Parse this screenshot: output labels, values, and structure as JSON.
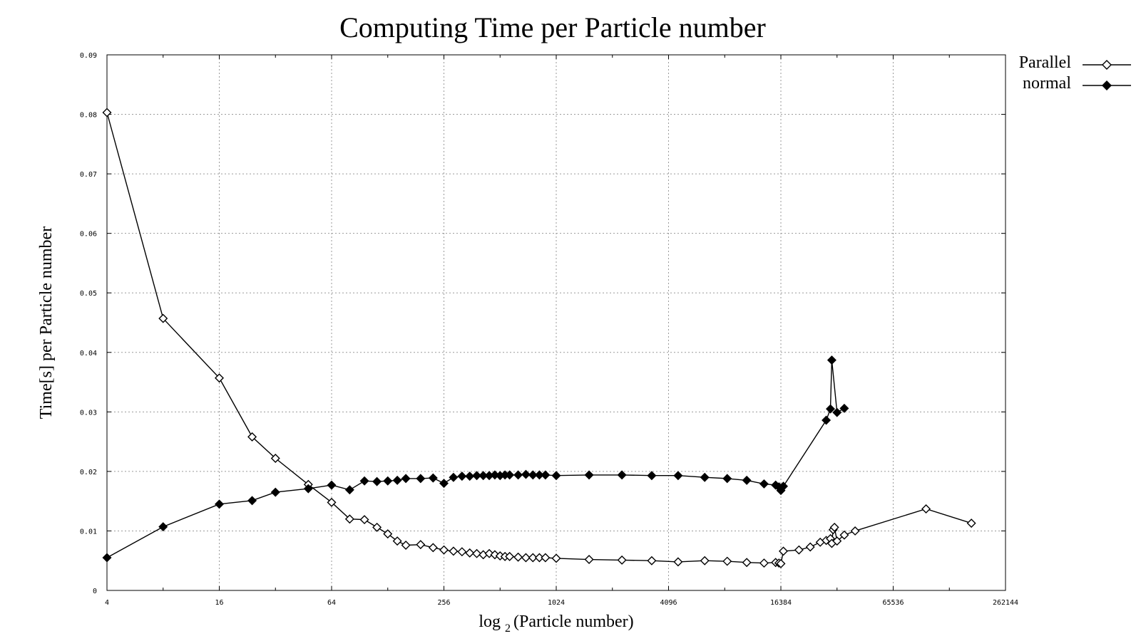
{
  "chart_data": {
    "type": "line",
    "title": "Computing Time per Particle number",
    "xlabel_prefix": "log",
    "xlabel_sub": "2",
    "xlabel_rest": "(Particle number)",
    "ylabel": "Time[s] per Particle number",
    "x_scale": "log2",
    "xlim": [
      4,
      262144
    ],
    "ylim": [
      0,
      0.09
    ],
    "x_ticks": [
      4,
      16,
      64,
      256,
      1024,
      4096,
      16384,
      65536,
      262144
    ],
    "x_tick_labels": [
      "4",
      "16",
      "64",
      "256",
      "1024",
      "4096",
      "16384",
      "65536",
      "262144"
    ],
    "y_ticks": [
      0,
      0.01,
      0.02,
      0.03,
      0.04,
      0.05,
      0.06,
      0.07,
      0.08,
      0.09
    ],
    "y_tick_labels": [
      "0",
      "0.01",
      "0.02",
      "0.03",
      "0.04",
      "0.05",
      "0.06",
      "0.07",
      "0.08",
      "0.09"
    ],
    "grid": true,
    "legend_position": "top-right outside",
    "series": [
      {
        "name": "Parallel",
        "marker": "open-diamond",
        "x": [
          4,
          8,
          16,
          24,
          32,
          48,
          64,
          80,
          96,
          112,
          128,
          144,
          160,
          192,
          224,
          256,
          288,
          320,
          352,
          384,
          416,
          448,
          480,
          512,
          544,
          576,
          640,
          704,
          768,
          832,
          896,
          1024,
          1536,
          2304,
          3328,
          4608,
          6400,
          8448,
          10752,
          13312,
          15360,
          16000,
          16384,
          16896,
          20480,
          23552,
          26624,
          28672,
          30208,
          30720,
          31232,
          31744,
          32768,
          35840,
          40960,
          98304,
          172032
        ],
        "y": [
          0.0803,
          0.0457,
          0.0357,
          0.0258,
          0.0222,
          0.0178,
          0.0148,
          0.012,
          0.0119,
          0.0106,
          0.0095,
          0.0083,
          0.0076,
          0.0077,
          0.0072,
          0.0068,
          0.0066,
          0.0065,
          0.0063,
          0.0062,
          0.006,
          0.0062,
          0.006,
          0.0058,
          0.0057,
          0.0057,
          0.0056,
          0.0055,
          0.0055,
          0.0055,
          0.0055,
          0.0054,
          0.0052,
          0.0051,
          0.005,
          0.0048,
          0.005,
          0.0049,
          0.0047,
          0.0046,
          0.0047,
          0.0046,
          0.0045,
          0.0066,
          0.0068,
          0.0073,
          0.0081,
          0.0084,
          0.0087,
          0.0079,
          0.0102,
          0.0106,
          0.0083,
          0.0093,
          0.01,
          0.0137,
          0.0113
        ]
      },
      {
        "name": "normal",
        "marker": "filled-diamond",
        "x": [
          4,
          8,
          16,
          24,
          32,
          48,
          64,
          80,
          96,
          112,
          128,
          144,
          160,
          192,
          224,
          256,
          288,
          320,
          352,
          384,
          416,
          448,
          480,
          512,
          544,
          576,
          640,
          704,
          768,
          832,
          896,
          1024,
          1536,
          2304,
          3328,
          4608,
          6400,
          8448,
          10752,
          13312,
          15360,
          16000,
          16384,
          16896,
          28672,
          30208,
          30720,
          32768,
          35840
        ],
        "y": [
          0.0055,
          0.0107,
          0.0145,
          0.0151,
          0.0165,
          0.0171,
          0.0177,
          0.0169,
          0.0184,
          0.0183,
          0.0184,
          0.0185,
          0.0188,
          0.0188,
          0.0189,
          0.018,
          0.019,
          0.0192,
          0.0192,
          0.0193,
          0.0193,
          0.0193,
          0.0194,
          0.0193,
          0.0194,
          0.0194,
          0.0194,
          0.0195,
          0.0194,
          0.0194,
          0.0194,
          0.0193,
          0.0194,
          0.0194,
          0.0193,
          0.0193,
          0.019,
          0.0188,
          0.0185,
          0.0179,
          0.0177,
          0.0174,
          0.0168,
          0.0175,
          0.0286,
          0.0305,
          0.0387,
          0.0299,
          0.0306
        ]
      }
    ]
  }
}
